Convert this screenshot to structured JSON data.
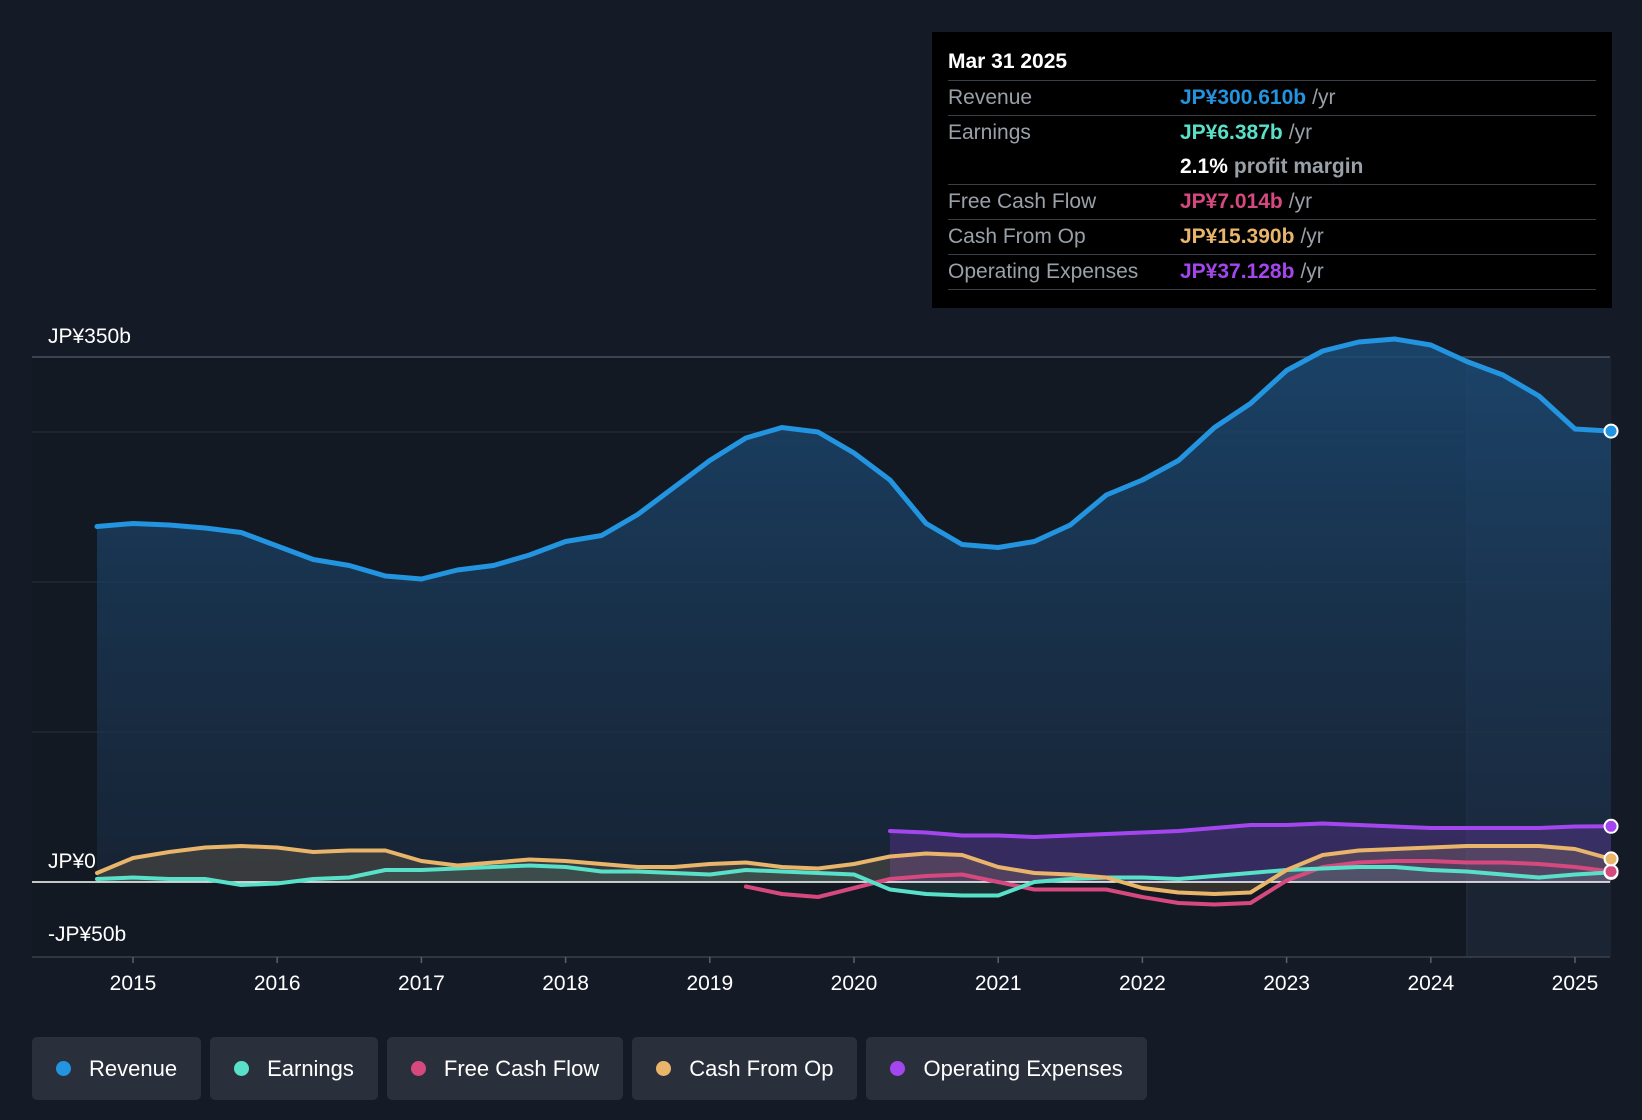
{
  "chart_data": {
    "type": "line",
    "title": "",
    "currency": "JP¥",
    "y_labels": {
      "top": "JP¥350b",
      "zero": "JP¥0",
      "bottom": "-JP¥50b"
    },
    "ylim": [
      -50,
      350
    ],
    "xlim": [
      2014.75,
      2025.25
    ],
    "x_ticks": [
      "2015",
      "2016",
      "2017",
      "2018",
      "2019",
      "2020",
      "2021",
      "2022",
      "2023",
      "2024",
      "2025"
    ],
    "highlight_start": 2024.25,
    "series": [
      {
        "name": "Revenue",
        "color": "#2394df",
        "fill": true,
        "points": [
          [
            2014.75,
            237
          ],
          [
            2015.0,
            239
          ],
          [
            2015.25,
            238
          ],
          [
            2015.5,
            236
          ],
          [
            2015.75,
            233
          ],
          [
            2016.0,
            224
          ],
          [
            2016.25,
            215
          ],
          [
            2016.5,
            211
          ],
          [
            2016.75,
            204
          ],
          [
            2017.0,
            202
          ],
          [
            2017.25,
            208
          ],
          [
            2017.5,
            211
          ],
          [
            2017.75,
            218
          ],
          [
            2018.0,
            227
          ],
          [
            2018.25,
            231
          ],
          [
            2018.5,
            245
          ],
          [
            2018.75,
            263
          ],
          [
            2019.0,
            281
          ],
          [
            2019.25,
            296
          ],
          [
            2019.5,
            303
          ],
          [
            2019.75,
            300
          ],
          [
            2020.0,
            286
          ],
          [
            2020.25,
            268
          ],
          [
            2020.5,
            239
          ],
          [
            2020.75,
            225
          ],
          [
            2021.0,
            223
          ],
          [
            2021.25,
            227
          ],
          [
            2021.5,
            238
          ],
          [
            2021.75,
            258
          ],
          [
            2022.0,
            268
          ],
          [
            2022.25,
            281
          ],
          [
            2022.5,
            303
          ],
          [
            2022.75,
            319
          ],
          [
            2023.0,
            341
          ],
          [
            2023.25,
            354
          ],
          [
            2023.5,
            360
          ],
          [
            2023.75,
            362
          ],
          [
            2024.0,
            358
          ],
          [
            2024.25,
            347
          ],
          [
            2024.5,
            338
          ],
          [
            2024.75,
            324
          ],
          [
            2025.0,
            302
          ],
          [
            2025.25,
            300.61
          ]
        ]
      },
      {
        "name": "Earnings",
        "color": "#58e1c8",
        "fill": true,
        "points": [
          [
            2014.75,
            2
          ],
          [
            2015.0,
            3
          ],
          [
            2015.25,
            2
          ],
          [
            2015.5,
            2
          ],
          [
            2015.75,
            -2
          ],
          [
            2016.0,
            -1
          ],
          [
            2016.25,
            2
          ],
          [
            2016.5,
            3
          ],
          [
            2016.75,
            8
          ],
          [
            2017.0,
            8
          ],
          [
            2017.25,
            9
          ],
          [
            2017.5,
            10
          ],
          [
            2017.75,
            11
          ],
          [
            2018.0,
            10
          ],
          [
            2018.25,
            7
          ],
          [
            2018.5,
            7
          ],
          [
            2018.75,
            6
          ],
          [
            2019.0,
            5
          ],
          [
            2019.25,
            8
          ],
          [
            2019.5,
            7
          ],
          [
            2019.75,
            6
          ],
          [
            2020.0,
            5
          ],
          [
            2020.25,
            -5
          ],
          [
            2020.5,
            -8
          ],
          [
            2020.75,
            -9
          ],
          [
            2021.0,
            -9
          ],
          [
            2021.25,
            0
          ],
          [
            2021.5,
            2
          ],
          [
            2021.75,
            3
          ],
          [
            2022.0,
            3
          ],
          [
            2022.25,
            2
          ],
          [
            2022.5,
            4
          ],
          [
            2022.75,
            6
          ],
          [
            2023.0,
            8
          ],
          [
            2023.25,
            9
          ],
          [
            2023.5,
            10
          ],
          [
            2023.75,
            10
          ],
          [
            2024.0,
            8
          ],
          [
            2024.25,
            7
          ],
          [
            2024.5,
            5
          ],
          [
            2024.75,
            3
          ],
          [
            2025.0,
            5
          ],
          [
            2025.25,
            6.387
          ]
        ]
      },
      {
        "name": "Free Cash Flow",
        "color": "#d6497f",
        "fill": false,
        "points": [
          [
            2019.25,
            -3
          ],
          [
            2019.5,
            -8
          ],
          [
            2019.75,
            -10
          ],
          [
            2020.0,
            -4
          ],
          [
            2020.25,
            2
          ],
          [
            2020.5,
            4
          ],
          [
            2020.75,
            5
          ],
          [
            2021.0,
            0
          ],
          [
            2021.25,
            -5
          ],
          [
            2021.5,
            -5
          ],
          [
            2021.75,
            -5
          ],
          [
            2022.0,
            -10
          ],
          [
            2022.25,
            -14
          ],
          [
            2022.5,
            -15
          ],
          [
            2022.75,
            -14
          ],
          [
            2023.0,
            1
          ],
          [
            2023.25,
            10
          ],
          [
            2023.5,
            13
          ],
          [
            2023.75,
            14
          ],
          [
            2024.0,
            14
          ],
          [
            2024.25,
            13
          ],
          [
            2024.5,
            13
          ],
          [
            2024.75,
            12
          ],
          [
            2025.0,
            10
          ],
          [
            2025.25,
            7.014
          ]
        ]
      },
      {
        "name": "Cash From Op",
        "color": "#e9b56a",
        "fill": true,
        "points": [
          [
            2014.75,
            6
          ],
          [
            2015.0,
            16
          ],
          [
            2015.25,
            20
          ],
          [
            2015.5,
            23
          ],
          [
            2015.75,
            24
          ],
          [
            2016.0,
            23
          ],
          [
            2016.25,
            20
          ],
          [
            2016.5,
            21
          ],
          [
            2016.75,
            21
          ],
          [
            2017.0,
            14
          ],
          [
            2017.25,
            11
          ],
          [
            2017.5,
            13
          ],
          [
            2017.75,
            15
          ],
          [
            2018.0,
            14
          ],
          [
            2018.25,
            12
          ],
          [
            2018.5,
            10
          ],
          [
            2018.75,
            10
          ],
          [
            2019.0,
            12
          ],
          [
            2019.25,
            13
          ],
          [
            2019.5,
            10
          ],
          [
            2019.75,
            9
          ],
          [
            2020.0,
            12
          ],
          [
            2020.25,
            17
          ],
          [
            2020.5,
            19
          ],
          [
            2020.75,
            18
          ],
          [
            2021.0,
            10
          ],
          [
            2021.25,
            6
          ],
          [
            2021.5,
            5
          ],
          [
            2021.75,
            3
          ],
          [
            2022.0,
            -4
          ],
          [
            2022.25,
            -7
          ],
          [
            2022.5,
            -8
          ],
          [
            2022.75,
            -7
          ],
          [
            2023.0,
            8
          ],
          [
            2023.25,
            18
          ],
          [
            2023.5,
            21
          ],
          [
            2023.75,
            22
          ],
          [
            2024.0,
            23
          ],
          [
            2024.25,
            24
          ],
          [
            2024.5,
            24
          ],
          [
            2024.75,
            24
          ],
          [
            2025.0,
            22
          ],
          [
            2025.25,
            15.39
          ]
        ]
      },
      {
        "name": "Operating Expenses",
        "color": "#a446ee",
        "fill": true,
        "points": [
          [
            2020.25,
            34
          ],
          [
            2020.5,
            33
          ],
          [
            2020.75,
            31
          ],
          [
            2021.0,
            31
          ],
          [
            2021.25,
            30
          ],
          [
            2021.5,
            31
          ],
          [
            2021.75,
            32
          ],
          [
            2022.0,
            33
          ],
          [
            2022.25,
            34
          ],
          [
            2022.5,
            36
          ],
          [
            2022.75,
            38
          ],
          [
            2023.0,
            38
          ],
          [
            2023.25,
            39
          ],
          [
            2023.5,
            38
          ],
          [
            2023.75,
            37
          ],
          [
            2024.0,
            36
          ],
          [
            2024.25,
            36
          ],
          [
            2024.5,
            36
          ],
          [
            2024.75,
            36
          ],
          [
            2025.0,
            37
          ],
          [
            2025.25,
            37.128
          ]
        ]
      }
    ]
  },
  "tooltip": {
    "date": "Mar 31 2025",
    "revenue": {
      "label": "Revenue",
      "value": "JP¥300.610b",
      "unit": "/yr",
      "color": "#2394df"
    },
    "earnings": {
      "label": "Earnings",
      "value": "JP¥6.387b",
      "unit": "/yr",
      "color": "#58e1c8"
    },
    "margin": {
      "value": "2.1%",
      "label": "profit margin"
    },
    "fcf": {
      "label": "Free Cash Flow",
      "value": "JP¥7.014b",
      "unit": "/yr",
      "color": "#d6497f"
    },
    "cfo": {
      "label": "Cash From Op",
      "value": "JP¥15.390b",
      "unit": "/yr",
      "color": "#e9b56a"
    },
    "opex": {
      "label": "Operating Expenses",
      "value": "JP¥37.128b",
      "unit": "/yr",
      "color": "#a446ee"
    }
  },
  "legend": [
    {
      "label": "Revenue",
      "color": "#2394df"
    },
    {
      "label": "Earnings",
      "color": "#58e1c8"
    },
    {
      "label": "Free Cash Flow",
      "color": "#d6497f"
    },
    {
      "label": "Cash From Op",
      "color": "#e9b56a"
    },
    {
      "label": "Operating Expenses",
      "color": "#a446ee"
    }
  ]
}
